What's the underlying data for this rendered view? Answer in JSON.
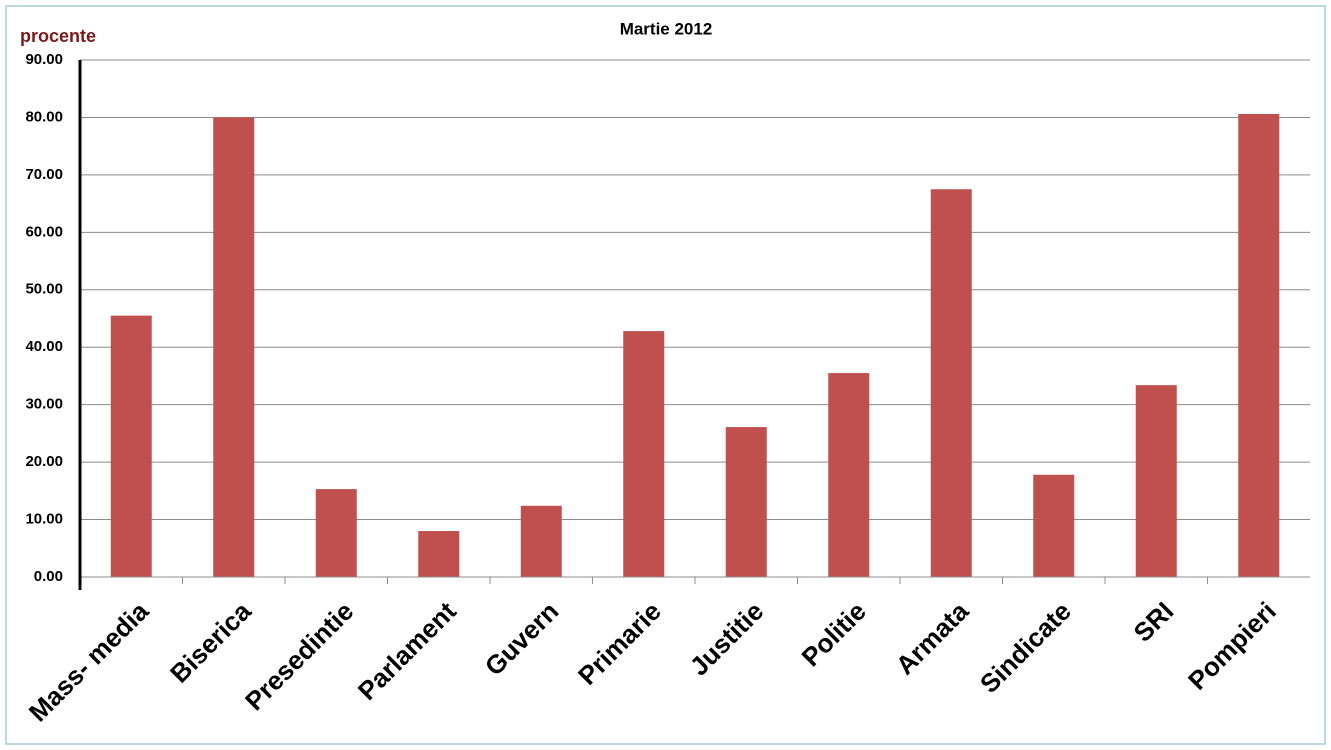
{
  "chart_data": {
    "type": "bar",
    "title": "Martie 2012",
    "y_label": "procente",
    "categories": [
      "Mass- media",
      "Biserica",
      "Presedintie",
      "Parlament",
      "Guvern",
      "Primarie",
      "Justitie",
      "Politie",
      "Armata",
      "Sindicate",
      "SRI",
      "Pompieri"
    ],
    "values": [
      45.5,
      80.0,
      15.3,
      8.0,
      12.4,
      42.8,
      26.1,
      35.5,
      67.5,
      17.8,
      33.4,
      80.6
    ],
    "color": "#c0504d",
    "ylim": [
      0,
      90
    ],
    "yticks": [
      {
        "value": 0,
        "label": "0.00"
      },
      {
        "value": 10,
        "label": "10.00"
      },
      {
        "value": 20,
        "label": "20.00"
      },
      {
        "value": 30,
        "label": "30.00"
      },
      {
        "value": 40,
        "label": "40.00"
      },
      {
        "value": 50,
        "label": "50.00"
      },
      {
        "value": 60,
        "label": "60.00"
      },
      {
        "value": 70,
        "label": "70.00"
      },
      {
        "value": 80,
        "label": "80.00"
      },
      {
        "value": 90,
        "label": "90.00"
      }
    ],
    "grid": true
  }
}
